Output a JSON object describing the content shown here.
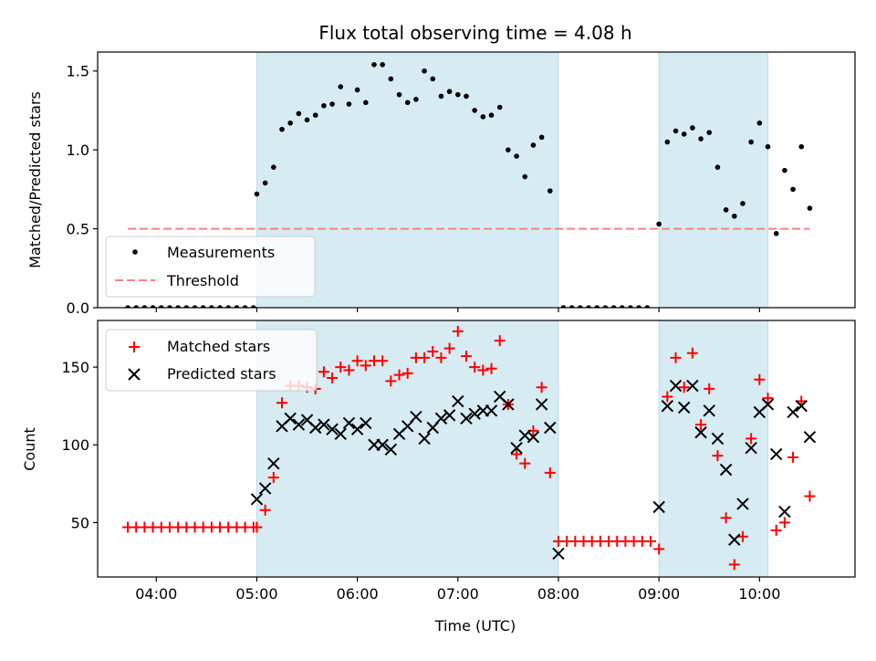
{
  "colors": {
    "band": "#add8e6",
    "measurements": "#000000",
    "threshold": "#ff7f7f",
    "matched": "#ff0000",
    "predicted": "#000000"
  },
  "chart_data": [
    {
      "type": "scatter",
      "title": "Flux total observing time = 4.08 h",
      "ylabel": "Matched/Predicted stars",
      "xlim": [
        "03:25",
        "10:57"
      ],
      "ylim": [
        0,
        1.62
      ],
      "x_ticks": [
        "04:00",
        "05:00",
        "06:00",
        "07:00",
        "08:00",
        "09:00",
        "10:00"
      ],
      "y_ticks": [
        "0.0",
        "0.5",
        "1.0",
        "1.5"
      ],
      "legend_position": "lower-left",
      "shaded_intervals": [
        [
          "05:00",
          "08:00"
        ],
        [
          "09:00",
          "10:05"
        ]
      ],
      "threshold": {
        "name": "Threshold",
        "value": 0.5,
        "x_range": [
          "03:43",
          "10:30"
        ],
        "style": "dashed"
      },
      "series": [
        {
          "name": "Measurements",
          "marker": "dot",
          "x": [
            "03:43",
            "03:48",
            "03:53",
            "03:58",
            "04:03",
            "04:08",
            "04:13",
            "04:18",
            "04:23",
            "04:28",
            "04:33",
            "04:38",
            "04:43",
            "04:48",
            "04:53",
            "04:58",
            "05:00",
            "05:05",
            "05:10",
            "05:15",
            "05:20",
            "05:25",
            "05:30",
            "05:35",
            "05:40",
            "05:45",
            "05:50",
            "05:55",
            "06:00",
            "06:05",
            "06:10",
            "06:15",
            "06:20",
            "06:25",
            "06:30",
            "06:35",
            "06:40",
            "06:45",
            "06:50",
            "06:55",
            "07:00",
            "07:05",
            "07:10",
            "07:15",
            "07:20",
            "07:25",
            "07:30",
            "07:35",
            "07:40",
            "07:45",
            "07:50",
            "07:55",
            "08:03",
            "08:08",
            "08:13",
            "08:18",
            "08:23",
            "08:28",
            "08:33",
            "08:38",
            "08:43",
            "08:48",
            "08:53",
            "09:00",
            "09:05",
            "09:10",
            "09:15",
            "09:20",
            "09:25",
            "09:30",
            "09:35",
            "09:40",
            "09:45",
            "09:50",
            "09:55",
            "10:00",
            "10:05",
            "10:10",
            "10:15",
            "10:20",
            "10:25",
            "10:30"
          ],
          "y": [
            0,
            0,
            0,
            0,
            0,
            0,
            0,
            0,
            0,
            0,
            0,
            0,
            0,
            0,
            0,
            0,
            0.72,
            0.79,
            0.89,
            1.13,
            1.17,
            1.23,
            1.19,
            1.22,
            1.28,
            1.29,
            1.4,
            1.29,
            1.38,
            1.3,
            1.54,
            1.54,
            1.45,
            1.35,
            1.3,
            1.32,
            1.5,
            1.45,
            1.34,
            1.37,
            1.35,
            1.34,
            1.25,
            1.21,
            1.22,
            1.27,
            1.0,
            0.96,
            0.83,
            1.03,
            1.08,
            0.74,
            0,
            0,
            0,
            0,
            0,
            0,
            0,
            0,
            0,
            0,
            0,
            0.53,
            1.05,
            1.12,
            1.1,
            1.14,
            1.07,
            1.11,
            0.89,
            0.62,
            0.58,
            0.66,
            1.05,
            1.17,
            1.02,
            0.47,
            0.87,
            0.75,
            1.02,
            0.63
          ]
        }
      ]
    },
    {
      "type": "scatter",
      "xlabel": "Time (UTC)",
      "ylabel": "Count",
      "xlim": [
        "03:25",
        "10:57"
      ],
      "ylim": [
        15,
        180
      ],
      "x_ticks": [
        "04:00",
        "05:00",
        "06:00",
        "07:00",
        "08:00",
        "09:00",
        "10:00"
      ],
      "y_ticks": [
        "50",
        "100",
        "150"
      ],
      "legend_position": "upper-left",
      "shaded_intervals": [
        [
          "05:00",
          "08:00"
        ],
        [
          "09:00",
          "10:05"
        ]
      ],
      "series": [
        {
          "name": "Matched stars",
          "marker": "plus",
          "x": [
            "03:43",
            "03:48",
            "03:53",
            "03:58",
            "04:03",
            "04:08",
            "04:13",
            "04:18",
            "04:23",
            "04:28",
            "04:33",
            "04:38",
            "04:43",
            "04:48",
            "04:53",
            "04:58",
            "05:00",
            "05:05",
            "05:10",
            "05:15",
            "05:20",
            "05:25",
            "05:30",
            "05:35",
            "05:40",
            "05:45",
            "05:50",
            "05:55",
            "06:00",
            "06:05",
            "06:10",
            "06:15",
            "06:20",
            "06:25",
            "06:30",
            "06:35",
            "06:40",
            "06:45",
            "06:50",
            "06:55",
            "07:00",
            "07:05",
            "07:10",
            "07:15",
            "07:20",
            "07:25",
            "07:30",
            "07:35",
            "07:40",
            "07:45",
            "07:50",
            "07:55",
            "08:00",
            "08:05",
            "08:10",
            "08:15",
            "08:20",
            "08:25",
            "08:30",
            "08:35",
            "08:40",
            "08:45",
            "08:50",
            "08:55",
            "09:00",
            "09:05",
            "09:10",
            "09:15",
            "09:20",
            "09:25",
            "09:30",
            "09:35",
            "09:40",
            "09:45",
            "09:50",
            "09:55",
            "10:00",
            "10:05",
            "10:10",
            "10:15",
            "10:20",
            "10:25",
            "10:30"
          ],
          "y": [
            47,
            47,
            47,
            47,
            47,
            47,
            47,
            47,
            47,
            47,
            47,
            47,
            47,
            47,
            47,
            47,
            47,
            58,
            79,
            127,
            138,
            138,
            137,
            136,
            147,
            143,
            150,
            148,
            154,
            151,
            154,
            154,
            141,
            145,
            146,
            156,
            156,
            160,
            156,
            162,
            173,
            157,
            150,
            148,
            149,
            167,
            126,
            94,
            88,
            109,
            137,
            82,
            38,
            38,
            38,
            38,
            38,
            38,
            38,
            38,
            38,
            38,
            38,
            38,
            33,
            131,
            156,
            137,
            159,
            113,
            136,
            93,
            53,
            23,
            41,
            104,
            142,
            130,
            45,
            50,
            92,
            128,
            67
          ]
        },
        {
          "name": "Predicted stars",
          "marker": "x",
          "x": [
            "05:00",
            "05:05",
            "05:10",
            "05:15",
            "05:20",
            "05:25",
            "05:30",
            "05:35",
            "05:40",
            "05:45",
            "05:50",
            "05:55",
            "06:00",
            "06:05",
            "06:10",
            "06:15",
            "06:20",
            "06:25",
            "06:30",
            "06:35",
            "06:40",
            "06:45",
            "06:50",
            "06:55",
            "07:00",
            "07:05",
            "07:10",
            "07:15",
            "07:20",
            "07:25",
            "07:30",
            "07:35",
            "07:40",
            "07:45",
            "07:50",
            "07:55",
            "08:00",
            "09:00",
            "09:05",
            "09:10",
            "09:15",
            "09:20",
            "09:25",
            "09:30",
            "09:35",
            "09:40",
            "09:45",
            "09:50",
            "09:55",
            "10:00",
            "10:05",
            "10:10",
            "10:15",
            "10:20",
            "10:25",
            "10:30"
          ],
          "y": [
            65,
            72,
            88,
            112,
            117,
            113,
            116,
            111,
            113,
            110,
            107,
            114,
            110,
            114,
            100,
            100,
            97,
            107,
            112,
            118,
            104,
            111,
            117,
            119,
            128,
            117,
            120,
            122,
            122,
            131,
            126,
            98,
            106,
            105,
            126,
            111,
            30,
            60,
            125,
            138,
            124,
            138,
            108,
            122,
            104,
            84,
            39,
            62,
            98,
            121,
            126,
            94,
            57,
            121,
            125,
            105
          ]
        }
      ]
    }
  ]
}
